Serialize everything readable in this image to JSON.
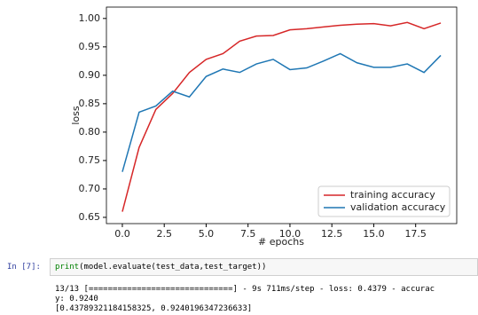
{
  "chart_data": {
    "type": "line",
    "xlabel": "# epochs",
    "ylabel": "loss",
    "x": [
      0,
      1,
      2,
      3,
      4,
      5,
      6,
      7,
      8,
      9,
      10,
      11,
      12,
      13,
      14,
      15,
      16,
      17,
      18,
      19
    ],
    "series": [
      {
        "name": "training accuracy",
        "color": "#d62728",
        "values": [
          0.66,
          0.773,
          0.84,
          0.868,
          0.905,
          0.928,
          0.938,
          0.96,
          0.969,
          0.97,
          0.98,
          0.982,
          0.985,
          0.988,
          0.99,
          0.991,
          0.987,
          0.993,
          0.982,
          0.992
        ]
      },
      {
        "name": "validation accuracy",
        "color": "#1f77b4",
        "values": [
          0.73,
          0.835,
          0.846,
          0.872,
          0.862,
          0.898,
          0.911,
          0.905,
          0.92,
          0.928,
          0.91,
          0.913,
          0.925,
          0.938,
          0.922,
          0.914,
          0.914,
          0.92,
          0.905,
          0.935
        ]
      }
    ],
    "xlim": [
      -0.95,
      19.95
    ],
    "ylim": [
      0.639,
      1.02
    ],
    "xticks": [
      {
        "value": 0,
        "label": "0.0"
      },
      2.5,
      {
        "value": 5,
        "label": "5.0"
      },
      7.5,
      {
        "value": 10,
        "label": "10.0"
      },
      12.5,
      {
        "value": 15,
        "label": "15.0"
      },
      17.5
    ],
    "yticks": [
      {
        "value": 0.65,
        "label": "0.65"
      },
      {
        "value": 0.7,
        "label": "0.70"
      },
      {
        "value": 0.75,
        "label": "0.75"
      },
      {
        "value": 0.8,
        "label": "0.80"
      },
      {
        "value": 0.85,
        "label": "0.85"
      },
      {
        "value": 0.9,
        "label": "0.90"
      },
      {
        "value": 0.95,
        "label": "0.95"
      },
      {
        "value": 1.0,
        "label": "1.00"
      }
    ],
    "legend": "lower right"
  },
  "cell": {
    "prompt": "In [7]:",
    "code": [
      "print",
      "(model.evaluate(test_data,test_target))"
    ],
    "output": [
      "13/13 [==============================] - 9s 711ms/step - loss: 0.4379 - accurac",
      "y: 0.9240",
      "[0.43789321184158325, 0.9240196347236633]"
    ]
  }
}
